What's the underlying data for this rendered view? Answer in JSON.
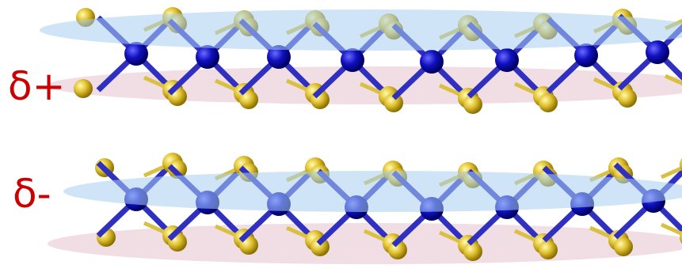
{
  "labels": [
    "δ+",
    "δ-"
  ]
}
